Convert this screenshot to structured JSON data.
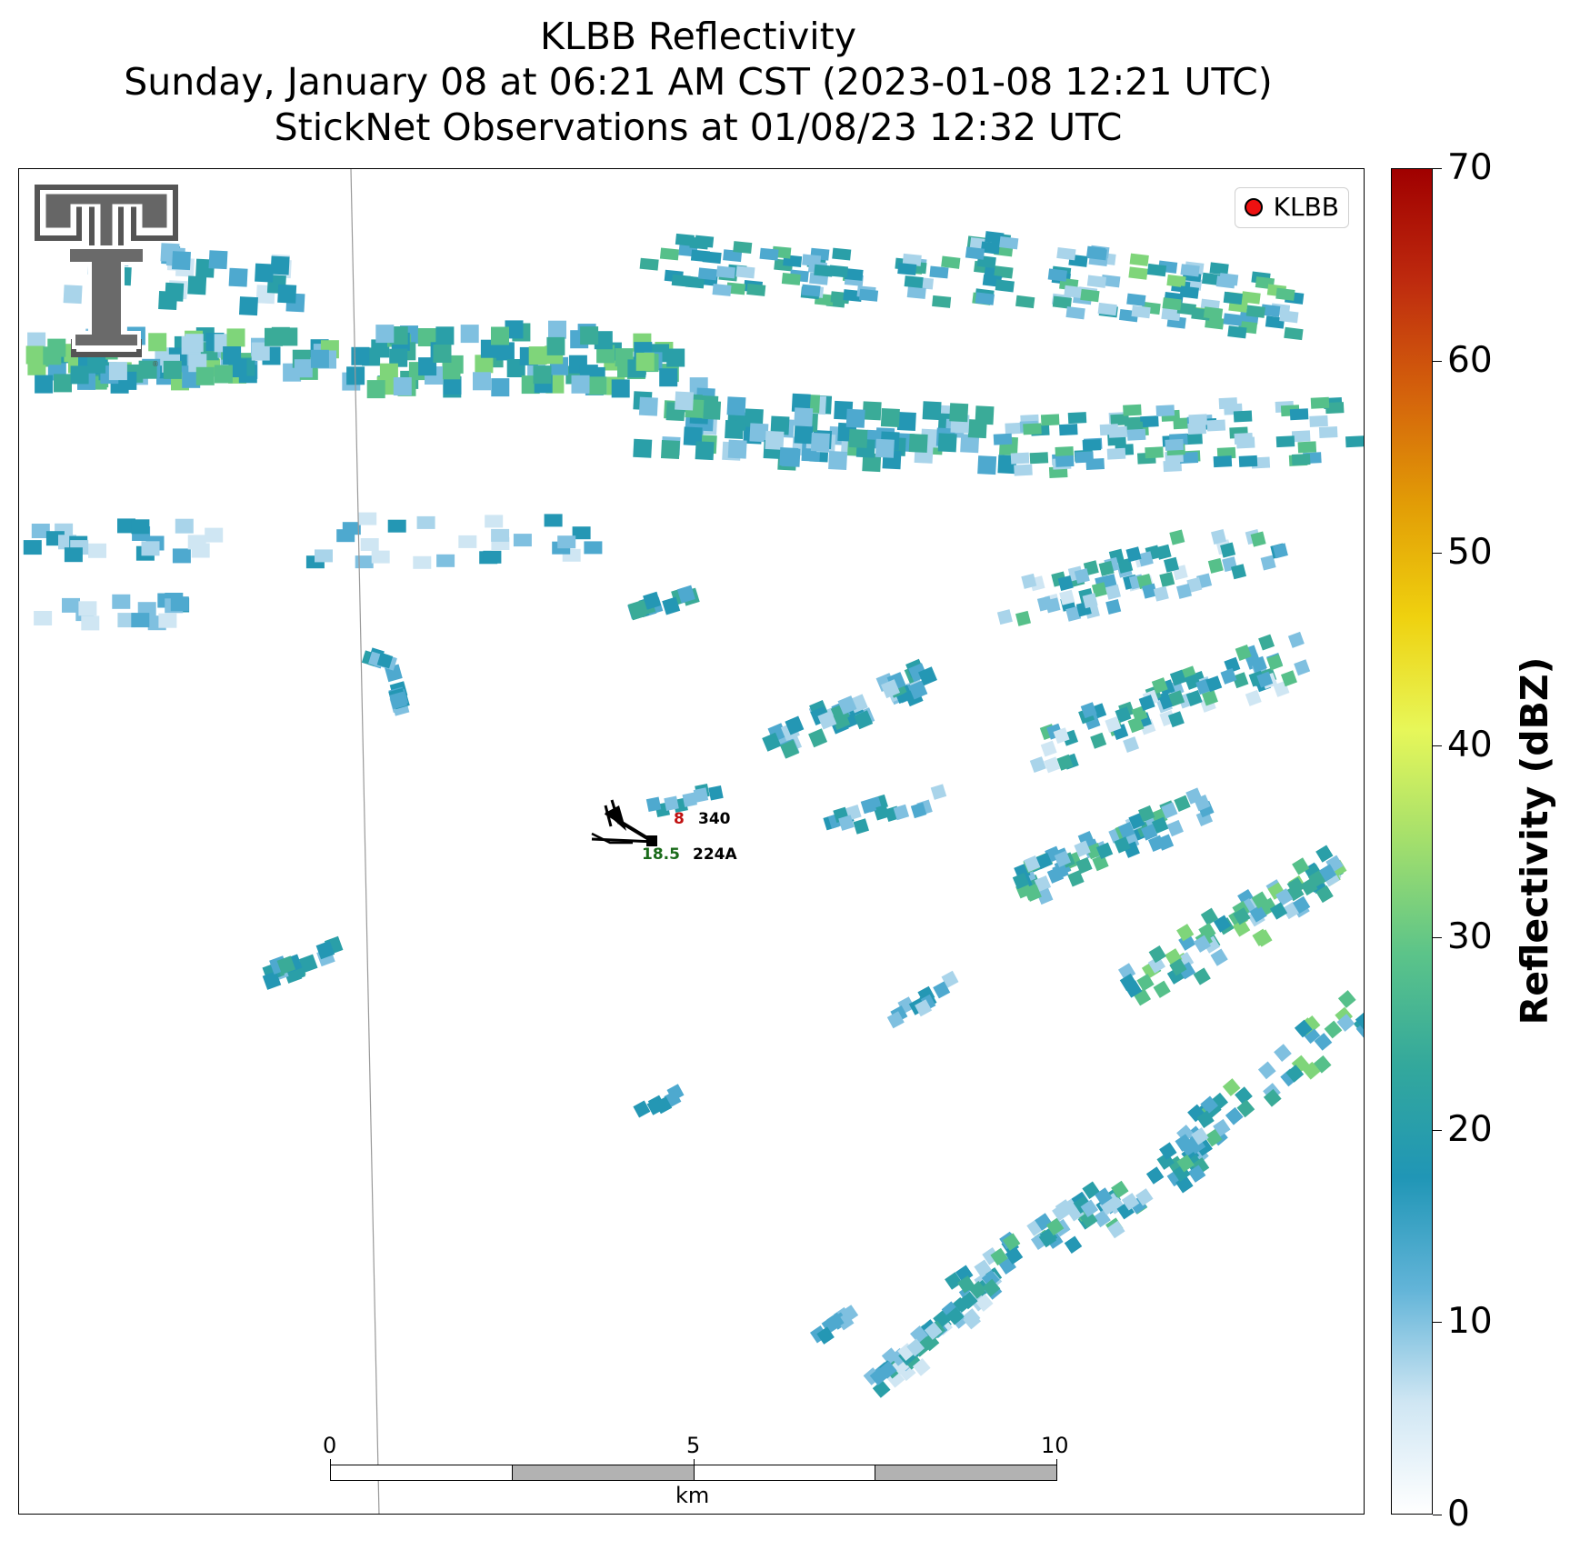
{
  "title": {
    "line1": "KLBB Reflectivity",
    "line2": "Sunday, January 08 at 06:21 AM CST (2023-01-08 12:21 UTC)",
    "line3": "StickNet Observations at 01/08/23 12:32 UTC"
  },
  "legend": {
    "label": "KLBB",
    "marker_color": "#e11111"
  },
  "station": {
    "id": "224A",
    "temperature": "18.5",
    "temperature_color": "#1a6b1a",
    "dewpoint_partial": "8",
    "dewpoint_color": "#c01010",
    "pressure": "340"
  },
  "scale_bar": {
    "unit": "km",
    "ticks": [
      "0",
      "5",
      "10"
    ]
  },
  "colorbar": {
    "label": "Reflectivity (dBZ)",
    "ticks": [
      "0",
      "10",
      "20",
      "30",
      "40",
      "50",
      "60",
      "70"
    ],
    "range": [
      0,
      70
    ],
    "colors": [
      "#ffffff",
      "#cfe6f3",
      "#62b4d8",
      "#2096b6",
      "#33a89c",
      "#5cc489",
      "#a3df6c",
      "#e7f759",
      "#efd10f",
      "#e29d06",
      "#d4620c",
      "#be2a0e",
      "#a00000"
    ]
  },
  "logo": {
    "name": "Texas Tech double-T logo"
  }
}
